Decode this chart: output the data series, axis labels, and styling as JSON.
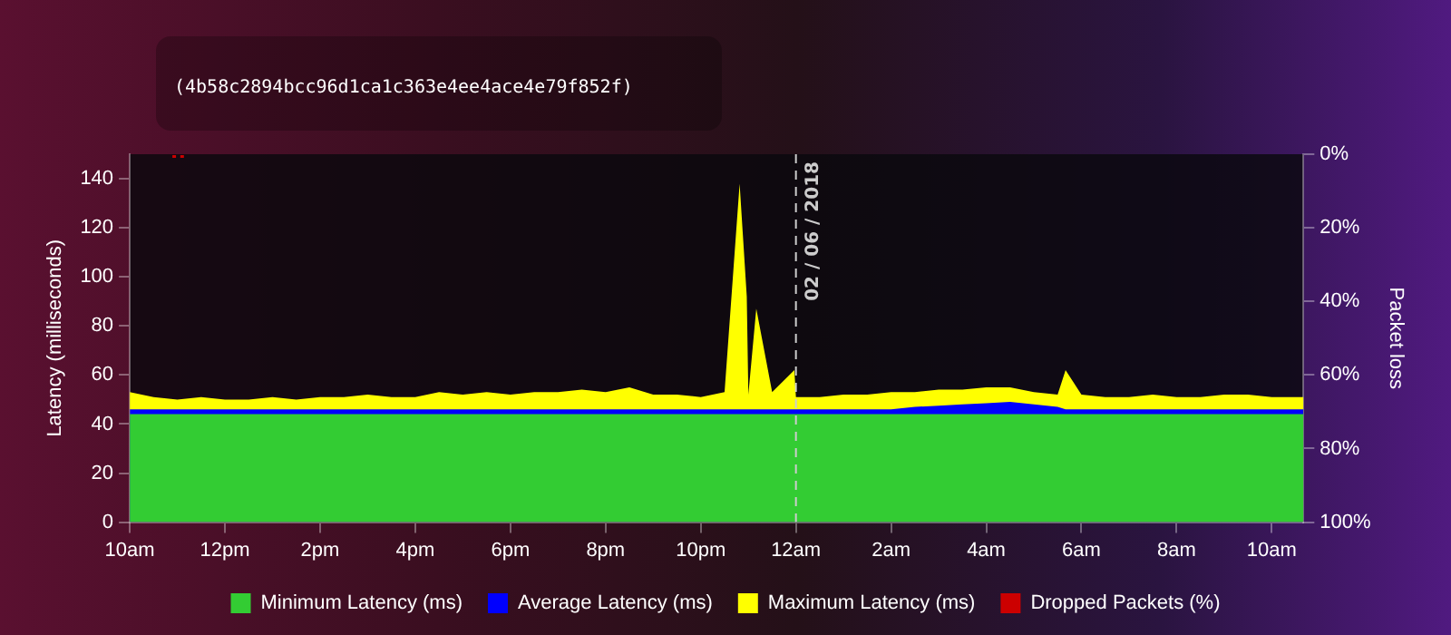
{
  "chart_data": {
    "type": "area",
    "subtitle": "(4b58c2894bcc96d1ca1c363e4ee4ace4e79f852f)",
    "ylabel": "Latency (milliseconds)",
    "y2label": "Packet loss",
    "x": [
      "2018-06-01T10:00",
      "2018-06-01T10:30",
      "2018-06-01T11:00",
      "2018-06-01T11:30",
      "2018-06-01T12:00",
      "2018-06-01T12:30",
      "2018-06-01T13:00",
      "2018-06-01T13:30",
      "2018-06-01T14:00",
      "2018-06-01T14:30",
      "2018-06-01T15:00",
      "2018-06-01T15:30",
      "2018-06-01T16:00",
      "2018-06-01T16:30",
      "2018-06-01T17:00",
      "2018-06-01T17:30",
      "2018-06-01T18:00",
      "2018-06-01T18:30",
      "2018-06-01T19:00",
      "2018-06-01T19:30",
      "2018-06-01T20:00",
      "2018-06-01T20:30",
      "2018-06-01T21:00",
      "2018-06-01T21:30",
      "2018-06-01T22:00",
      "2018-06-01T22:30",
      "2018-06-01T22:49",
      "2018-06-01T22:58",
      "2018-06-01T23:00",
      "2018-06-01T23:10",
      "2018-06-01T23:30",
      "2018-06-01T23:58",
      "2018-06-02T00:00",
      "2018-06-02T00:30",
      "2018-06-02T01:00",
      "2018-06-02T01:30",
      "2018-06-02T02:00",
      "2018-06-02T02:30",
      "2018-06-02T03:00",
      "2018-06-02T03:30",
      "2018-06-02T04:00",
      "2018-06-02T04:30",
      "2018-06-02T05:00",
      "2018-06-02T05:30",
      "2018-06-02T05:40",
      "2018-06-02T06:00",
      "2018-06-02T06:30",
      "2018-06-02T07:00",
      "2018-06-02T07:30",
      "2018-06-02T08:00",
      "2018-06-02T08:30",
      "2018-06-02T09:00",
      "2018-06-02T09:30",
      "2018-06-02T10:00",
      "2018-06-02T10:30",
      "2018-06-02T10:40"
    ],
    "series": [
      {
        "name": "Minimum Latency (ms)",
        "color": "#33cc33",
        "values": [
          44,
          44,
          44,
          44,
          44,
          44,
          44,
          44,
          44,
          44,
          44,
          44,
          44,
          44,
          44,
          44,
          44,
          44,
          44,
          44,
          44,
          44,
          44,
          44,
          44,
          44,
          44,
          44,
          44,
          44,
          44,
          44,
          44,
          44,
          44,
          44,
          44,
          44,
          44,
          44,
          44,
          44,
          44,
          44,
          44,
          44,
          44,
          44,
          44,
          44,
          44,
          44,
          44,
          44,
          44,
          44
        ]
      },
      {
        "name": "Average Latency (ms)",
        "color": "#0000ff",
        "values": [
          46,
          46,
          46,
          46,
          46,
          46,
          46,
          46,
          46,
          46,
          46,
          46,
          46,
          46,
          46,
          46,
          46,
          46,
          46,
          46,
          46,
          46,
          46,
          46,
          46,
          46,
          46,
          46,
          46,
          46,
          46,
          46,
          46,
          46,
          46,
          46,
          46,
          47,
          47.5,
          48,
          48.5,
          49,
          48,
          47,
          46,
          46,
          46,
          46,
          46,
          46,
          46,
          46,
          46,
          46,
          46,
          46
        ]
      },
      {
        "name": "Maximum Latency (ms)",
        "color": "#ffff00",
        "values": [
          53,
          51,
          50,
          51,
          50,
          50,
          51,
          50,
          51,
          51,
          52,
          51,
          51,
          53,
          52,
          53,
          52,
          53,
          53,
          54,
          53,
          55,
          52,
          52,
          51,
          53,
          138,
          92,
          52,
          87,
          53,
          62,
          51,
          51,
          52,
          52,
          53,
          53,
          54,
          54,
          55,
          55,
          53,
          52,
          62,
          52,
          51,
          51,
          52,
          51,
          51,
          52,
          52,
          51,
          51,
          51
        ]
      },
      {
        "name": "Dropped Packets (%)",
        "color": "#cc0000",
        "type": "bar",
        "axis": "y2",
        "x": [
          "2018-06-01T10:56",
          "2018-06-01T11:06"
        ],
        "values": [
          1,
          1
        ]
      }
    ],
    "xlim": [
      "2018-06-01T10:00",
      "2018-06-02T10:40"
    ],
    "xticks": [
      {
        "value": "2018-06-01T10:00",
        "label": "10am"
      },
      {
        "value": "2018-06-01T12:00",
        "label": "12pm"
      },
      {
        "value": "2018-06-01T14:00",
        "label": "2pm"
      },
      {
        "value": "2018-06-01T16:00",
        "label": "4pm"
      },
      {
        "value": "2018-06-01T18:00",
        "label": "6pm"
      },
      {
        "value": "2018-06-01T20:00",
        "label": "8pm"
      },
      {
        "value": "2018-06-01T22:00",
        "label": "10pm"
      },
      {
        "value": "2018-06-02T00:00",
        "label": "12am"
      },
      {
        "value": "2018-06-02T02:00",
        "label": "2am"
      },
      {
        "value": "2018-06-02T04:00",
        "label": "4am"
      },
      {
        "value": "2018-06-02T06:00",
        "label": "6am"
      },
      {
        "value": "2018-06-02T08:00",
        "label": "8am"
      },
      {
        "value": "2018-06-02T10:00",
        "label": "10am"
      }
    ],
    "ylim": [
      0,
      150
    ],
    "yticks": [
      0,
      20,
      40,
      60,
      80,
      100,
      120,
      140
    ],
    "y2lim": [
      100,
      0
    ],
    "y2ticks": [
      {
        "value": 0,
        "label": "0%"
      },
      {
        "value": 20,
        "label": "20%"
      },
      {
        "value": 40,
        "label": "40%"
      },
      {
        "value": 60,
        "label": "60%"
      },
      {
        "value": 80,
        "label": "80%"
      },
      {
        "value": 100,
        "label": "100%"
      }
    ],
    "ref_lines": [
      {
        "axis": "x",
        "value": "2018-06-02T00:00",
        "label": "02 / 06 / 2018",
        "color": "#cccccc",
        "line_style": "dashed"
      }
    ],
    "grid": false,
    "legend": "bottom"
  }
}
